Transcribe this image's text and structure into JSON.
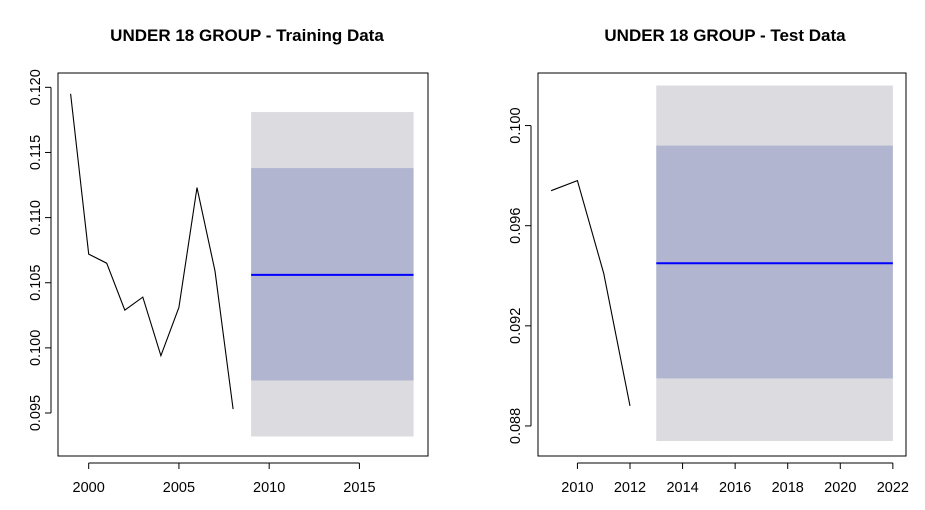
{
  "chart_data": [
    {
      "type": "line",
      "title": "UNDER 18 GROUP - Training Data",
      "xlabel": "",
      "ylabel": "",
      "xlim": [
        1998.3,
        2018.8
      ],
      "ylim": [
        0.0917,
        0.1211
      ],
      "x_ticks": [
        2000,
        2005,
        2010,
        2015
      ],
      "y_ticks": [
        0.095,
        0.1,
        0.105,
        0.11,
        0.115,
        0.12
      ],
      "y_tick_labels": [
        "0.095",
        "0.100",
        "0.105",
        "0.110",
        "0.115",
        "0.120"
      ],
      "series": [
        {
          "x": [
            1999,
            2000,
            2001,
            2002,
            2003,
            2004,
            2005,
            2006,
            2007,
            2008
          ],
          "y": [
            0.1195,
            0.1072,
            0.1065,
            0.1029,
            0.1039,
            0.0994,
            0.1031,
            0.1123,
            0.1059,
            0.0953
          ]
        }
      ],
      "forecast": {
        "x_start": 2009,
        "x_end": 2018,
        "mean": 0.1056,
        "lo80": 0.0975,
        "hi80": 0.1138,
        "lo95": 0.0932,
        "hi95": 0.1181
      },
      "colors": {
        "line": "#000000",
        "forecast_mean": "#0000ff",
        "band80": "#b1b5d0",
        "band95": "#dbdbe0"
      },
      "grid": false
    },
    {
      "type": "line",
      "title": "UNDER 18 GROUP - Test Data",
      "xlabel": "",
      "ylabel": "",
      "xlim": [
        2008.5,
        2022.5
      ],
      "ylim": [
        0.0868,
        0.1021
      ],
      "x_ticks": [
        2010,
        2012,
        2014,
        2016,
        2018,
        2020,
        2022
      ],
      "y_ticks": [
        0.088,
        0.092,
        0.096,
        0.1
      ],
      "y_tick_labels": [
        "0.088",
        "0.092",
        "0.096",
        "0.100"
      ],
      "series": [
        {
          "x": [
            2009,
            2010,
            2011,
            2012
          ],
          "y": [
            0.0974,
            0.0978,
            0.0941,
            0.0888
          ]
        }
      ],
      "forecast": {
        "x_start": 2013,
        "x_end": 2022,
        "mean": 0.0945,
        "lo80": 0.0899,
        "hi80": 0.0992,
        "lo95": 0.0874,
        "hi95": 0.1016
      },
      "colors": {
        "line": "#000000",
        "forecast_mean": "#0000ff",
        "band80": "#b1b5d0",
        "band95": "#dbdbe0"
      },
      "grid": false
    }
  ]
}
